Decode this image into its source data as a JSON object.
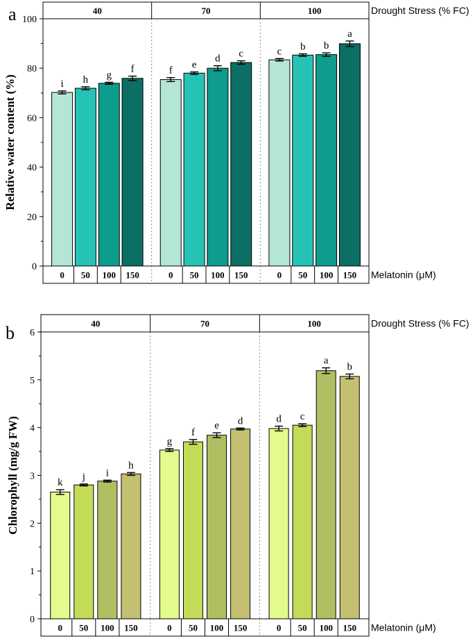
{
  "chart_data": [
    {
      "type": "bar",
      "panel_label": "a",
      "group_axis_title": "Drought Stress (% FC)",
      "groups": [
        "40",
        "70",
        "100"
      ],
      "xlabel": "Melatonin (μM)",
      "categories": [
        "0",
        "50",
        "100",
        "150"
      ],
      "ylabel": "Relative water content (%)",
      "ylim": [
        0,
        100
      ],
      "yticks": [
        "0",
        "20",
        "40",
        "60",
        "80",
        "100"
      ],
      "series": [
        {
          "group": "40",
          "values": [
            70.2,
            71.9,
            73.9,
            75.9
          ],
          "errors": [
            0.6,
            0.6,
            0.4,
            0.9
          ],
          "letters": [
            "i",
            "h",
            "g",
            "f"
          ]
        },
        {
          "group": "70",
          "values": [
            75.4,
            78.0,
            80.0,
            82.3
          ],
          "errors": [
            0.8,
            0.5,
            1.0,
            0.7
          ],
          "letters": [
            "f",
            "e",
            "d",
            "c"
          ]
        },
        {
          "group": "100",
          "values": [
            83.4,
            85.3,
            85.5,
            89.9
          ],
          "errors": [
            0.5,
            0.5,
            0.7,
            1.1
          ],
          "letters": [
            "c",
            "b",
            "b",
            "a"
          ]
        }
      ],
      "colors": [
        "#b4e6d8",
        "#26c3b4",
        "#0e9c8d",
        "#0b6f64"
      ]
    },
    {
      "type": "bar",
      "panel_label": "b",
      "group_axis_title": "Drought Stress (% FC)",
      "groups": [
        "40",
        "70",
        "100"
      ],
      "xlabel": "Melatonin (μM)",
      "categories": [
        "0",
        "50",
        "100",
        "150"
      ],
      "ylabel": "Chlorophyll (mg/g FW)",
      "ylim": [
        0,
        6
      ],
      "yticks": [
        "0",
        "1",
        "2",
        "3",
        "4",
        "5",
        "6"
      ],
      "series": [
        {
          "group": "40",
          "values": [
            2.65,
            2.8,
            2.88,
            3.03
          ],
          "errors": [
            0.05,
            0.02,
            0.02,
            0.03
          ],
          "letters": [
            "k",
            "j",
            "i",
            "h"
          ]
        },
        {
          "group": "70",
          "values": [
            3.53,
            3.7,
            3.84,
            3.97
          ],
          "errors": [
            0.03,
            0.05,
            0.05,
            0.02
          ],
          "letters": [
            "g",
            "f",
            "e",
            "d"
          ]
        },
        {
          "group": "100",
          "values": [
            3.98,
            4.05,
            5.19,
            5.07
          ],
          "errors": [
            0.05,
            0.03,
            0.06,
            0.05
          ],
          "letters": [
            "d",
            "c",
            "a",
            "b"
          ]
        }
      ],
      "colors": [
        "#e2fb8c",
        "#c3dc58",
        "#b1bf62",
        "#c4c072"
      ]
    }
  ]
}
